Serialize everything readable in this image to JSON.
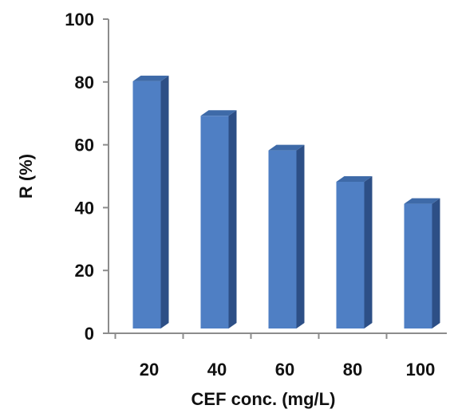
{
  "chart_data": {
    "type": "bar",
    "style": "3d",
    "categories": [
      "20",
      "40",
      "60",
      "80",
      "100"
    ],
    "values": [
      82,
      71,
      60,
      50,
      43
    ],
    "xlabel": "CEF conc. (mg/L)",
    "ylabel": "R (%)",
    "ylim": [
      0,
      100
    ],
    "yticks": [
      "0",
      "20",
      "40",
      "60",
      "80",
      "100"
    ],
    "grid": false,
    "legend": "none",
    "colors": {
      "bar_front": "#4f7fc4",
      "bar_side": "#2d4f86",
      "bar_top": "#3e6aa8",
      "axis": "#8c8c8c"
    }
  }
}
